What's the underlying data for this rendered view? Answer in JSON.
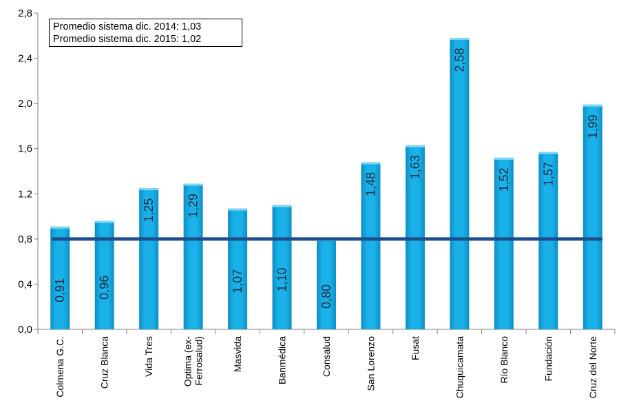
{
  "chart_data": {
    "type": "bar",
    "categories": [
      "Colmena G.C.",
      "Cruz Blanca",
      "Vida Tres",
      "Optima (ex-Ferrosalud)",
      "Masvida",
      "Banmédica",
      "Consalud",
      "San Lorenzo",
      "Fusat",
      "Chuquicamata",
      "Río Blanco",
      "Fundación",
      "Cruz del Norte"
    ],
    "values": [
      0.91,
      0.96,
      1.25,
      1.29,
      1.07,
      1.1,
      0.8,
      1.48,
      1.63,
      2.58,
      1.52,
      1.57,
      1.99
    ],
    "data_labels": [
      "0,91",
      "0,96",
      "1,25",
      "1,29",
      "1,07",
      "1,10",
      "0,80",
      "1,48",
      "1,63",
      "2,58",
      "1,52",
      "1,57",
      "1,99"
    ],
    "reference_line": 0.8,
    "ylim": [
      0,
      2.8
    ],
    "yticks": [
      0,
      0.4,
      0.8,
      1.2,
      1.6,
      2.0,
      2.4,
      2.8
    ],
    "ytick_labels": [
      "0,0",
      "0,4",
      "0,8",
      "1,2",
      "1,6",
      "2,0",
      "2,4",
      "2,8"
    ],
    "annotations": [
      "Promedio sistema dic. 2014: 1,03",
      "Promedio sistema dic. 2015: 1,02"
    ],
    "colors": {
      "bar": "#1ab0e8",
      "bar_edge": "#0b8fc4",
      "bar_top": "#7fd6f5",
      "reference_line": "#1f4e8c",
      "axis": "#808080"
    }
  }
}
